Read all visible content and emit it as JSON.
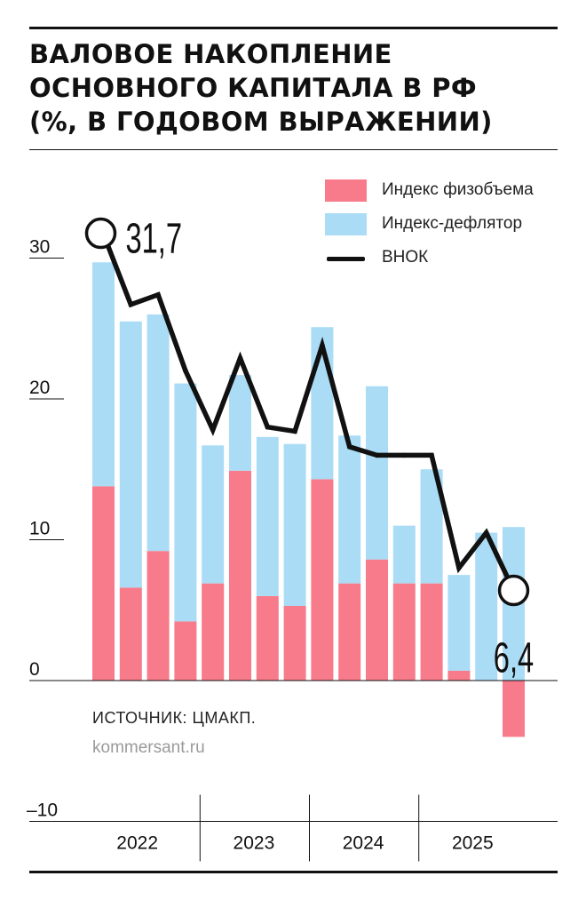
{
  "title_lines": [
    "ВАЛОВОЕ НАКОПЛЕНИЕ",
    "ОСНОВНОГО КАПИТАЛА В РФ",
    "(%, В ГОДОВОМ ВЫРАЖЕНИИ)"
  ],
  "source": "ИСТОЧНИК: ЦМАКП.",
  "credit": "kommersant.ru",
  "colors": {
    "physical": "#f77b8a",
    "deflator": "#aadcf5",
    "line": "#111111",
    "axis": "#111111"
  },
  "chart_data": {
    "type": "bar",
    "stacked": true,
    "title": "ВАЛОВОЕ НАКОПЛЕНИЕ ОСНОВНОГО КАПИТАЛА В РФ (%, В ГОДОВОМ ВЫРАЖЕНИИ)",
    "xlabel": "",
    "ylabel": "",
    "ylim": [
      -10,
      31.7
    ],
    "yticks": [
      30,
      20,
      10,
      0,
      -10
    ],
    "ytick_labels": [
      "30",
      "20",
      "10",
      "0",
      "–10"
    ],
    "years": [
      {
        "label": "2022",
        "start": 0,
        "end": 4
      },
      {
        "label": "2023",
        "start": 4,
        "end": 8
      },
      {
        "label": "2024",
        "start": 8,
        "end": 12
      },
      {
        "label": "2025",
        "start": 12,
        "end": 16
      }
    ],
    "categories": [
      "2022-1",
      "2022-2",
      "2022-3",
      "2022-4",
      "2023-1",
      "2023-2",
      "2023-3",
      "2023-4",
      "2024-1",
      "2024-2",
      "2024-3",
      "2024-4",
      "2025-1",
      "2025-2",
      "2025-3",
      "2025-4"
    ],
    "series": [
      {
        "name": "Индекс физобъема",
        "kind": "bar",
        "values": [
          13.8,
          6.6,
          9.2,
          4.2,
          6.9,
          14.9,
          6.0,
          5.3,
          14.3,
          6.9,
          8.6,
          6.9,
          6.9,
          0.7,
          0.0,
          -4.0
        ]
      },
      {
        "name": "Индекс-дефлятор",
        "kind": "bar",
        "values": [
          15.9,
          18.9,
          16.8,
          16.9,
          9.8,
          6.8,
          11.3,
          11.5,
          10.8,
          10.5,
          12.3,
          4.1,
          8.1,
          6.8,
          10.5,
          10.9
        ]
      },
      {
        "name": "ВНОК",
        "kind": "line",
        "values": [
          31.7,
          26.7,
          27.4,
          22.0,
          17.8,
          22.9,
          18.0,
          17.7,
          23.8,
          16.6,
          16.0,
          16.0,
          16.0,
          8.0,
          10.5,
          6.4
        ]
      }
    ],
    "annotations": [
      {
        "index": 0,
        "series": "ВНОК",
        "text": "31,7"
      },
      {
        "index": 15,
        "series": "ВНОК",
        "text": "6,4"
      }
    ],
    "legend_position": "top-right"
  }
}
